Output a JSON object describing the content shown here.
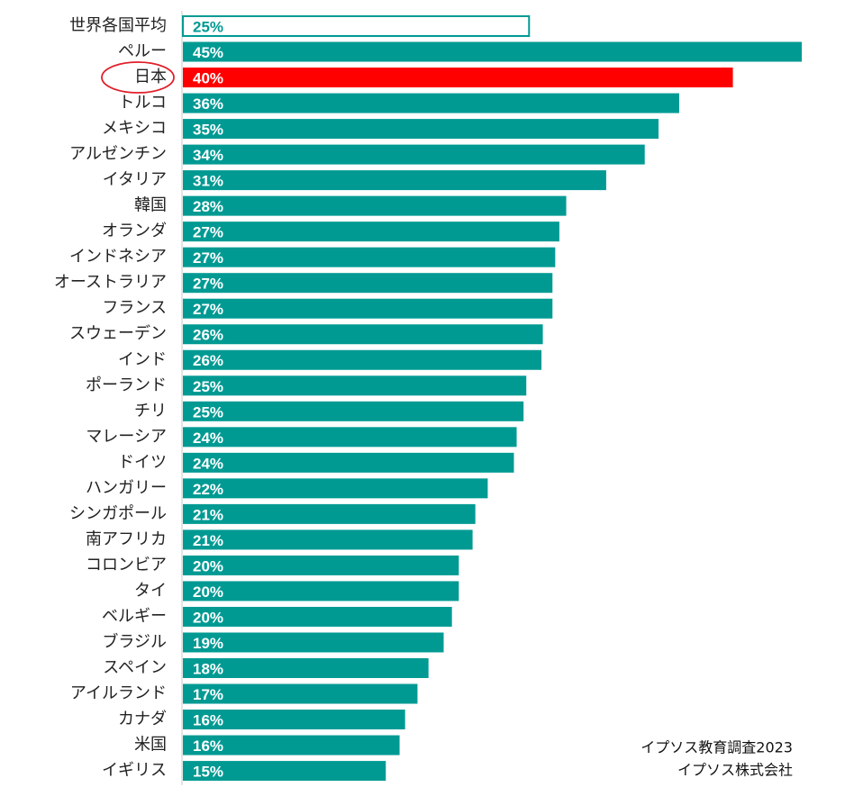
{
  "chart_data": {
    "type": "bar",
    "orientation": "horizontal",
    "categories": [
      "世界各国平均",
      "ペルー",
      "日本",
      "トルコ",
      "メキシコ",
      "アルゼンチン",
      "イタリア",
      "韓国",
      "オランダ",
      "インドネシア",
      "オーストラリア",
      "フランス",
      "スウェーデン",
      "インド",
      "ポーランド",
      "チリ",
      "マレーシア",
      "ドイツ",
      "ハンガリー",
      "シンガポール",
      "南アフリカ",
      "コロンビア",
      "タイ",
      "ベルギー",
      "ブラジル",
      "スペイン",
      "アイルランド",
      "カナダ",
      "米国",
      "イギリス"
    ],
    "values": [
      25.2,
      45,
      40,
      36.1,
      34.6,
      33.6,
      30.8,
      27.9,
      27.4,
      27.1,
      26.9,
      26.9,
      26.2,
      26.1,
      25,
      24.8,
      24.3,
      24.1,
      22.2,
      21.3,
      21.1,
      20.1,
      20.1,
      19.6,
      19,
      17.9,
      17.1,
      16.2,
      15.8,
      14.8
    ],
    "value_labels": [
      "25%",
      "45%",
      "40%",
      "36%",
      "35%",
      "34%",
      "31%",
      "28%",
      "27%",
      "27%",
      "27%",
      "27%",
      "26%",
      "26%",
      "25%",
      "25%",
      "24%",
      "24%",
      "22%",
      "21%",
      "21%",
      "20%",
      "20%",
      "20%",
      "19%",
      "18%",
      "17%",
      "16%",
      "16%",
      "15%"
    ],
    "color": "#009a93",
    "colors": [
      "#ffffff",
      "#009a93",
      "#ff0000",
      "#009a93",
      "#009a93",
      "#009a93",
      "#009a93",
      "#009a93",
      "#009a93",
      "#009a93",
      "#009a93",
      "#009a93",
      "#009a93",
      "#009a93",
      "#009a93",
      "#009a93",
      "#009a93",
      "#009a93",
      "#009a93",
      "#009a93",
      "#009a93",
      "#009a93",
      "#009a93",
      "#009a93",
      "#009a93",
      "#009a93",
      "#009a93",
      "#009a93",
      "#009a93",
      "#009a93"
    ],
    "xlim": [
      0,
      45
    ],
    "source": [
      "イプソス教育調査2023",
      "イプソス株式会社"
    ]
  }
}
